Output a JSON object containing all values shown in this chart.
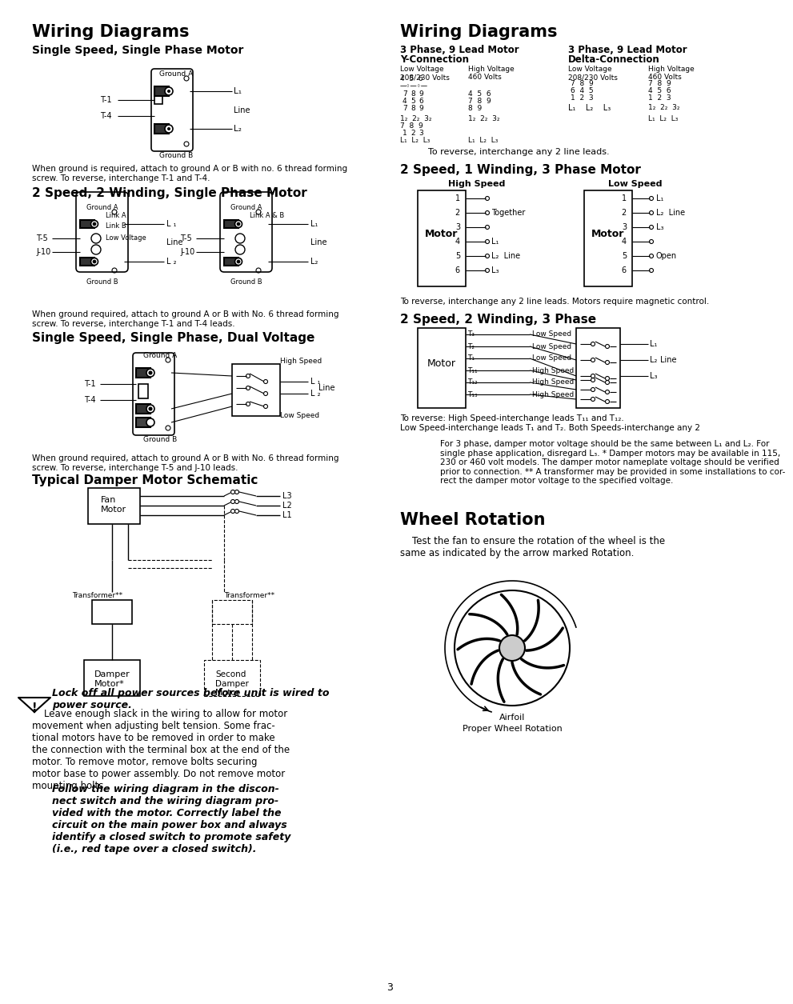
{
  "page_bg": "#ffffff",
  "page_num": "3",
  "left_title": "Wiring Diagrams",
  "right_title": "Wiring Diagrams",
  "left_sec1_title": "Single Speed, Single Phase Motor",
  "left_sec1_body": "When ground is required, attach to ground A or B with no. 6 thread forming\nscrew. To reverse, interchange T-1 and T-4.",
  "left_sec2_title": "2 Speed, 2 Winding, Single Phase Motor",
  "left_sec2_body": "When ground required, attach to ground A or B with No. 6 thread forming\nscrew. To reverse, interchange T-1 and T-4 leads.",
  "left_sec3_title": "Single Speed, Single Phase, Dual Voltage",
  "left_sec3_body": "When ground required, attach to ground A or B with No. 6 thread forming\nscrew. To reverse, interchange T-5 and J-10 leads.",
  "left_sec4_title": "Typical Damper Motor Schematic",
  "lock_off": "Lock off all power sources before unit is wired to\npower source.",
  "body2": "    Leave enough slack in the wiring to allow for motor\nmovement when adjusting belt tension. Some frac-\ntional motors have to be removed in order to make\nthe connection with the terminal box at the end of the\nmotor. To remove motor, remove bolts securing\nmotor base to power assembly. Do not remove motor\nmounting bolts.",
  "italic_warn": "Follow the wiring diagram in the discon-\nnect switch and the wiring diagram pro-\nvided with the motor. Correctly label the\ncircuit on the main power box and always\nidentify a closed switch to promote safety\n(i.e., red tape over a closed switch).",
  "right_3ph_y_title": "3 Phase, 9 Lead Motor",
  "right_3ph_y_sub": "Y-Connection",
  "right_3ph_d_title": "3 Phase, 9 Lead Motor",
  "right_3ph_d_sub": "Delta-Connection",
  "right_reverse1": "To reverse, interchange any 2 line leads.",
  "right_sec2_title": "2 Speed, 1 Winding, 3 Phase Motor",
  "right_reverse2": "To reverse, interchange any 2 line leads. Motors require magnetic control.",
  "right_sec3_title": "2 Speed, 2 Winding, 3 Phase",
  "right_reverse3a": "To reverse: High Speed-interchange leads T₁₁ and T₁₂.",
  "right_reverse3b": "Low Speed-interchange leads T₁ and T₂. Both Speeds-interchange any 2",
  "damper_body": "For 3 phase, damper motor voltage should be the same between L₁ and L₂. For\nsingle phase application, disregard L₃. * Damper motors may be available in 115,\n230 or 460 volt models. The damper motor nameplate voltage should be verified\nprior to connection. ** A transformer may be provided in some installations to cor-\nrect the damper motor voltage to the specified voltage.",
  "wheel_title": "Wheel Rotation",
  "wheel_body": "    Test the fan to ensure the rotation of the wheel is the\nsame as indicated by the arrow marked Rotation.",
  "airfoil_label": "Airfoil",
  "proper_label": "Proper Wheel Rotation"
}
